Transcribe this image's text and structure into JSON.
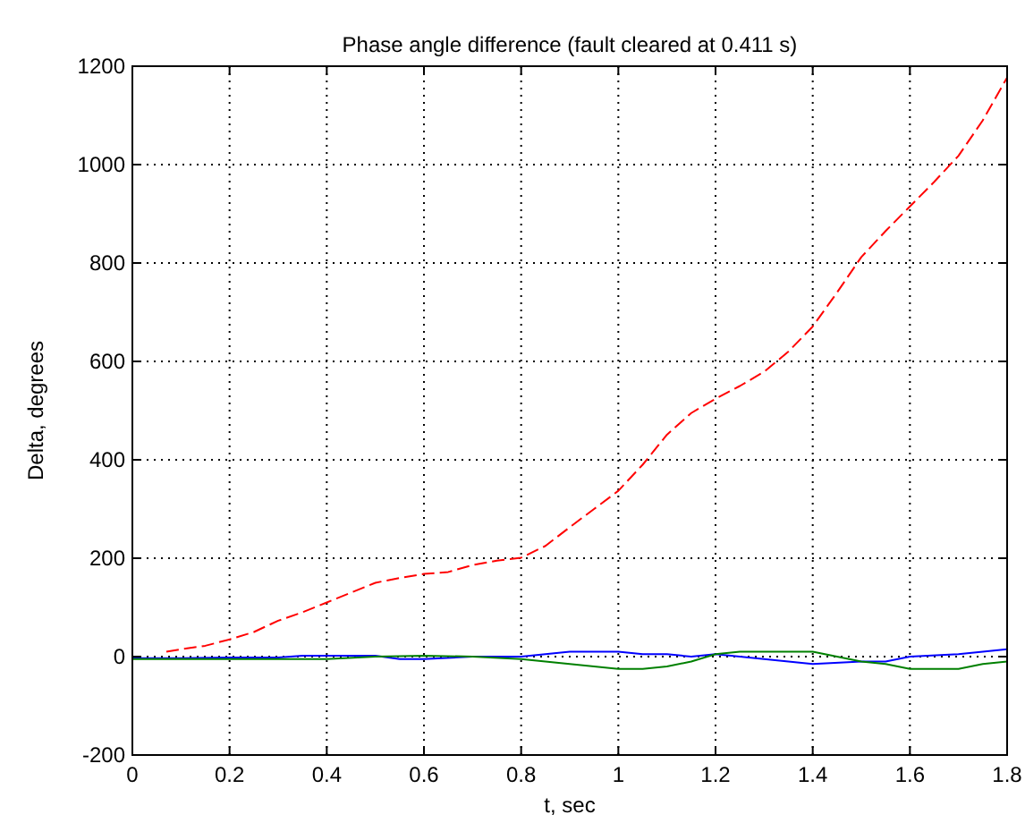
{
  "chart_data": {
    "type": "line",
    "title": "Phase angle difference (fault cleared at 0.411 s)",
    "xlabel": "t, sec",
    "ylabel": "Delta, degrees",
    "xlim": [
      0,
      1.8
    ],
    "ylim": [
      -200,
      1200
    ],
    "xticks": [
      0,
      0.2,
      0.4,
      0.6,
      0.8,
      1,
      1.2,
      1.4,
      1.6,
      1.8
    ],
    "yticks": [
      -200,
      0,
      200,
      400,
      600,
      800,
      1000,
      1200
    ],
    "grid": true,
    "series": [
      {
        "color": "#ff0000",
        "line_style": "dashed",
        "x": [
          0.07,
          0.1,
          0.15,
          0.2,
          0.25,
          0.3,
          0.35,
          0.4,
          0.45,
          0.5,
          0.55,
          0.6,
          0.65,
          0.7,
          0.75,
          0.8,
          0.85,
          0.9,
          0.95,
          1,
          1.05,
          1.1,
          1.15,
          1.2,
          1.25,
          1.3,
          1.35,
          1.4,
          1.45,
          1.5,
          1.55,
          1.6,
          1.65,
          1.7,
          1.75,
          1.8
        ],
        "values": [
          10,
          15,
          22,
          35,
          50,
          73,
          90,
          110,
          130,
          150,
          160,
          168,
          172,
          186,
          195,
          201,
          225,
          263,
          300,
          337,
          390,
          451,
          495,
          524,
          550,
          579,
          620,
          671,
          740,
          812,
          865,
          915,
          965,
          1018,
          1090,
          1177
        ]
      },
      {
        "color": "#0000ff",
        "x": [
          0,
          0.1,
          0.2,
          0.3,
          0.35,
          0.4,
          0.5,
          0.55,
          0.6,
          0.7,
          0.8,
          0.85,
          0.9,
          1,
          1.05,
          1.1,
          1.15,
          1.2,
          1.25,
          1.3,
          1.4,
          1.5,
          1.55,
          1.6,
          1.7,
          1.75,
          1.8
        ],
        "values": [
          -3,
          -3,
          -2,
          -2,
          2,
          2,
          2,
          -5,
          -5,
          0,
          0,
          5,
          10,
          10,
          5,
          5,
          0,
          5,
          0,
          -5,
          -15,
          -10,
          -10,
          0,
          5,
          10,
          15
        ]
      },
      {
        "color": "#008000",
        "x": [
          0,
          0.1,
          0.2,
          0.3,
          0.4,
          0.5,
          0.6,
          0.7,
          0.8,
          0.9,
          1,
          1.05,
          1.1,
          1.15,
          1.2,
          1.25,
          1.3,
          1.4,
          1.45,
          1.5,
          1.55,
          1.6,
          1.7,
          1.75,
          1.8
        ],
        "values": [
          -5,
          -5,
          -5,
          -5,
          -5,
          0,
          2,
          0,
          -5,
          -15,
          -25,
          -25,
          -20,
          -10,
          5,
          10,
          10,
          10,
          0,
          -10,
          -15,
          -25,
          -25,
          -15,
          -10
        ]
      }
    ]
  }
}
